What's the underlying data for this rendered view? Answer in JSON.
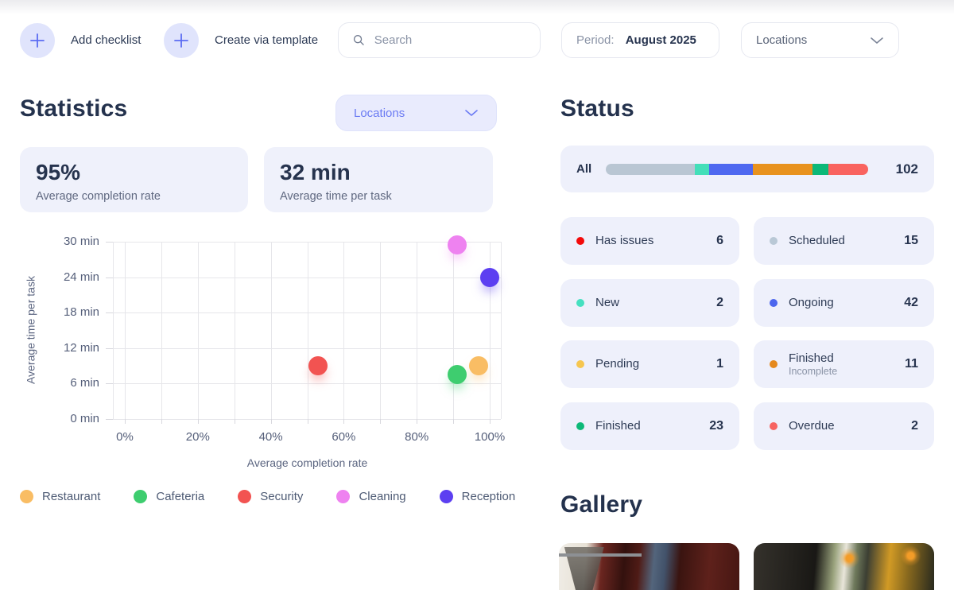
{
  "toolbar": {
    "add_checklist": "Add checklist",
    "create_via_template": "Create via template",
    "search_placeholder": "Search",
    "period_label": "Period: ",
    "period_value": "August 2025",
    "locations_label": "Locations"
  },
  "statistics": {
    "title": "Statistics",
    "locations_button": "Locations",
    "cards": [
      {
        "value": "95%",
        "label": "Average completion rate"
      },
      {
        "value": "32 min",
        "label": "Average time per task"
      }
    ]
  },
  "chart_data": {
    "type": "scatter",
    "xlabel": "Average completion rate",
    "ylabel": "Average time per task",
    "xlim": [
      0,
      100
    ],
    "ylim": [
      0,
      30
    ],
    "x_tick_step": 10,
    "x_label_ticks": [
      0,
      20,
      40,
      60,
      80,
      100
    ],
    "x_tick_suffix": "%",
    "y_ticks": [
      0,
      6,
      12,
      18,
      24,
      30
    ],
    "y_tick_suffix": " min",
    "grid": true,
    "legend_position": "bottom",
    "series": [
      {
        "name": "Restaurant",
        "color": "#f9bd64",
        "x": 97,
        "y": 9
      },
      {
        "name": "Cafeteria",
        "color": "#3ecd6f",
        "x": 91,
        "y": 7.5
      },
      {
        "name": "Security",
        "color": "#f25351",
        "x": 53,
        "y": 9
      },
      {
        "name": "Cleaning",
        "color": "#ee82f0",
        "x": 91,
        "y": 29.5
      },
      {
        "name": "Reception",
        "color": "#5c3ff1",
        "x": 100,
        "y": 24
      }
    ]
  },
  "status": {
    "title": "Status",
    "all_label": "All",
    "all_count": "102",
    "bar_segments": [
      {
        "color": "#b9c6d3",
        "pct": 33.8
      },
      {
        "color": "#43dfb9",
        "pct": 5.4
      },
      {
        "color": "#4e68f0",
        "pct": 16.7
      },
      {
        "color": "#e8921e",
        "pct": 22.9
      },
      {
        "color": "#0cb878",
        "pct": 5.9
      },
      {
        "color": "#f9635f",
        "pct": 15.3
      }
    ],
    "items": [
      {
        "label": "Has issues",
        "sub": "",
        "count": "6",
        "color": "#f30a0a"
      },
      {
        "label": "Scheduled",
        "sub": "",
        "count": "15",
        "color": "#b9c8d6"
      },
      {
        "label": "New",
        "sub": "",
        "count": "2",
        "color": "#45e0c0"
      },
      {
        "label": "Ongoing",
        "sub": "",
        "count": "42",
        "color": "#4c66ee"
      },
      {
        "label": "Pending",
        "sub": "",
        "count": "1",
        "color": "#f6c64f"
      },
      {
        "label": "Finished",
        "sub": "Incomplete",
        "count": "11",
        "color": "#e5891d"
      },
      {
        "label": "Finished",
        "sub": "",
        "count": "23",
        "color": "#0db978"
      },
      {
        "label": "Overdue",
        "sub": "",
        "count": "2",
        "color": "#f76461"
      }
    ]
  },
  "gallery": {
    "title": "Gallery",
    "images": [
      {
        "name": "restaurant interior with dark red curtains"
      },
      {
        "name": "dim cafe interior with pendant lights"
      }
    ]
  },
  "colors": {
    "accent": "#5b6cf2",
    "heading": "#24324d",
    "card_bg": "#eef0fb"
  }
}
